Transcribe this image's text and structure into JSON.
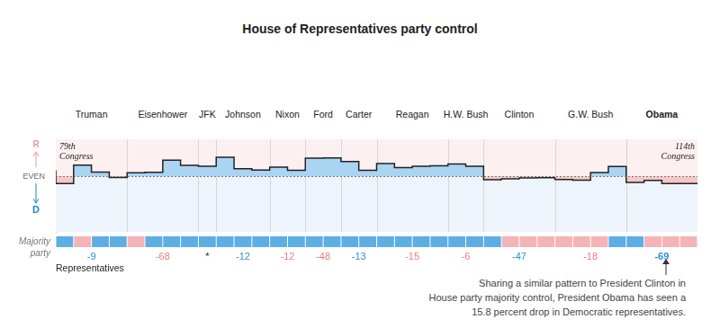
{
  "chart_data": {
    "type": "line",
    "title": "House of Representatives party control",
    "line_style": "step",
    "color": "#222222",
    "grid": false,
    "tick_labels": "y",
    "categories": [
      "79th Congress",
      null,
      null,
      null,
      null,
      null,
      null,
      null,
      null,
      null,
      null,
      null,
      null,
      null,
      null,
      null,
      null,
      null,
      null,
      null,
      null,
      null,
      null,
      null,
      null,
      null,
      null,
      null,
      null,
      null,
      null,
      null,
      null,
      null,
      null,
      "114th Congress"
    ],
    "values": [
      49,
      -59,
      91,
      35,
      -9,
      29,
      33,
      131,
      89,
      81,
      155,
      61,
      51,
      75,
      49,
      147,
      149,
      119,
      49,
      103,
      71,
      81,
      85,
      99,
      81,
      -27,
      -21,
      -13,
      -11,
      -25,
      -31,
      31,
      79,
      -49,
      -33,
      -59
    ],
    "ylim": [
      -450,
      300
    ],
    "yticks": [
      {
        "value": 0,
        "label": "EVEN"
      }
    ],
    "direction_labels": {
      "up": "R",
      "down": "D"
    },
    "majority_label": "Majority party",
    "majority": [
      "D",
      "R",
      "D",
      "D",
      "R",
      "D",
      "D",
      "D",
      "D",
      "D",
      "D",
      "D",
      "D",
      "D",
      "D",
      "D",
      "D",
      "D",
      "D",
      "D",
      "D",
      "D",
      "D",
      "D",
      "D",
      "R",
      "R",
      "R",
      "R",
      "R",
      "R",
      "D",
      "D",
      "R",
      "R",
      "R"
    ],
    "party_colors": {
      "D": "#5caee3",
      "R": "#f4b4b7"
    },
    "presidents": [
      {
        "name": "Truman",
        "change": -9,
        "color": "#2f8fd8"
      },
      {
        "name": "Eisenhower",
        "change": -68,
        "color": "#ee7d78"
      },
      {
        "name": "JFK",
        "change": "*",
        "color": "#222222"
      },
      {
        "name": "Johnson",
        "change": -12,
        "color": "#2f8fd8"
      },
      {
        "name": "Nixon",
        "change": -12,
        "color": "#ee7d78"
      },
      {
        "name": "Ford",
        "change": -48,
        "color": "#ee7d78"
      },
      {
        "name": "Carter",
        "change": -13,
        "color": "#2f8fd8"
      },
      {
        "name": "Reagan",
        "change": -15,
        "color": "#ee7d78"
      },
      {
        "name": "H.W. Bush",
        "change": -6,
        "color": "#ee7d78"
      },
      {
        "name": "Clinton",
        "change": -47,
        "color": "#2f8fd8"
      },
      {
        "name": "G.W. Bush",
        "change": -18,
        "color": "#ee7d78"
      },
      {
        "name": "Obama",
        "change": -69,
        "color": "#2f8fd8"
      }
    ],
    "change_label": "Representatives",
    "annotation": [
      "Sharing a similar pattern to President Clinton in",
      "House party majority control, President Obama has seen a",
      "15.8 percent drop in Democratic representatives."
    ]
  }
}
